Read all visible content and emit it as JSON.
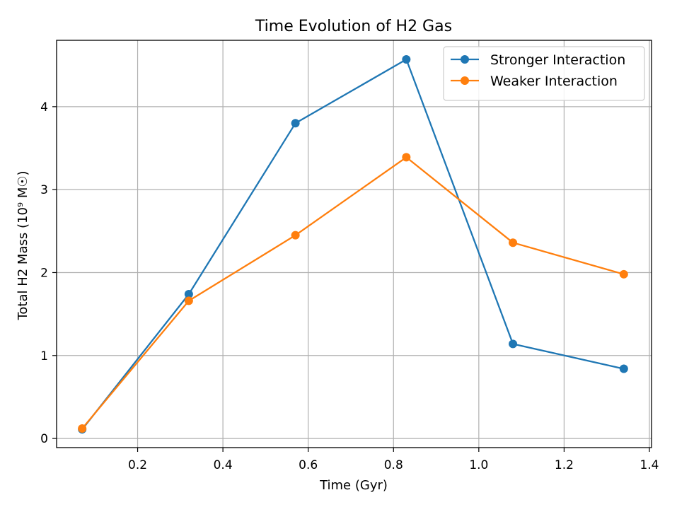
{
  "chart_data": {
    "type": "line",
    "title": "Time Evolution of H2 Gas",
    "xlabel": "Time (Gyr)",
    "ylabel": "Total H2 Mass (10⁹ M☉)",
    "x": [
      0.07,
      0.32,
      0.57,
      0.83,
      1.08,
      1.34
    ],
    "xlim": [
      0.01,
      1.405
    ],
    "ylim": [
      -0.11,
      4.8
    ],
    "xticks": [
      0.2,
      0.4,
      0.6,
      0.8,
      1.0,
      1.2,
      1.4
    ],
    "xtick_labels": [
      "0.2",
      "0.4",
      "0.6",
      "0.8",
      "1.0",
      "1.2",
      "1.4"
    ],
    "yticks": [
      0,
      1,
      2,
      3,
      4
    ],
    "ytick_labels": [
      "0",
      "1",
      "2",
      "3",
      "4"
    ],
    "grid": true,
    "legend_position": "top-right",
    "series": [
      {
        "name": "Stronger Interaction",
        "color": "#1f77b4",
        "values": [
          0.11,
          1.74,
          3.8,
          4.57,
          1.14,
          0.84
        ]
      },
      {
        "name": "Weaker Interaction",
        "color": "#ff7f0e",
        "values": [
          0.12,
          1.66,
          2.45,
          3.39,
          2.36,
          1.98
        ]
      }
    ]
  }
}
